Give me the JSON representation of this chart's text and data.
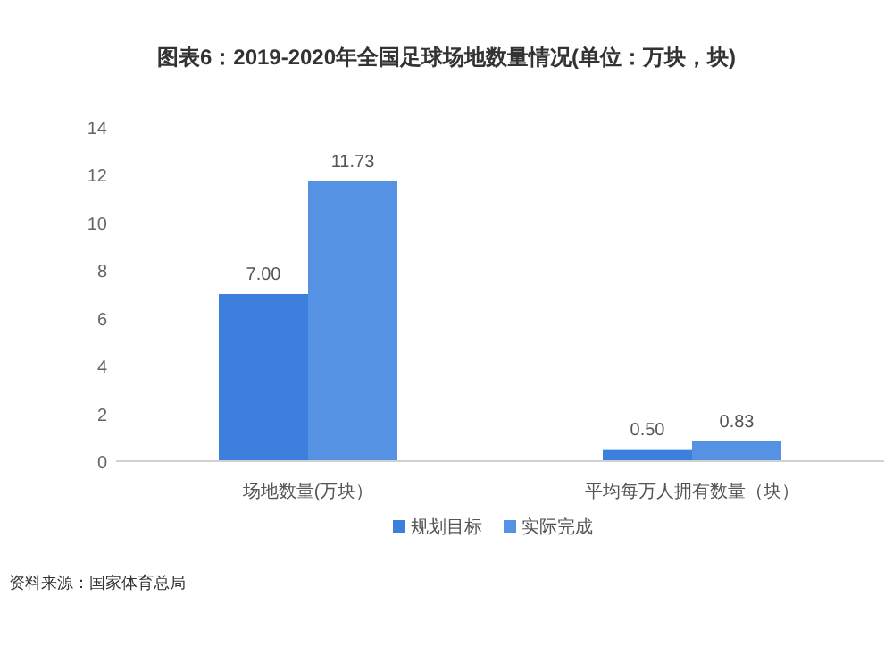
{
  "chart_data": {
    "type": "bar",
    "title": "图表6：2019-2020年全国足球场地数量情况(单位：万块，块)",
    "categories": [
      "场地数量(万块）",
      "平均每万人拥有数量（块）"
    ],
    "series": [
      {
        "name": "规划目标",
        "color": "#3c7fdc",
        "values": [
          7.0,
          0.5
        ],
        "value_labels": [
          "7.00",
          "0.50"
        ]
      },
      {
        "name": "实际完成",
        "color": "#5592e3",
        "values": [
          11.73,
          0.83
        ],
        "value_labels": [
          "11.73",
          "0.83"
        ]
      }
    ],
    "ylim": [
      0,
      14
    ],
    "yticks": [
      0,
      2,
      4,
      6,
      8,
      10,
      12,
      14
    ],
    "legend": "bottom",
    "annotations": [
      "资料来源：国家体育总局"
    ]
  }
}
